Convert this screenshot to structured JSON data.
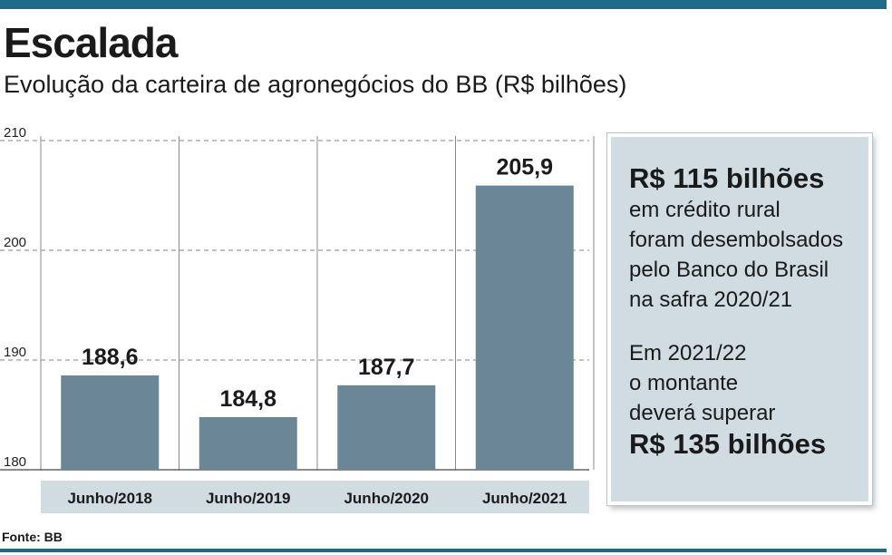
{
  "colors": {
    "accent": "#1e6a88",
    "bar": "#6b8796",
    "label_bg": "#d0dbe2",
    "grid": "#9c9c9c"
  },
  "header": {
    "title": "Escalada",
    "subtitle": "Evolução da carteira de agronegócios do BB (R$ bilhões)"
  },
  "chart_data": {
    "type": "bar",
    "categories": [
      "Junho/2018",
      "Junho/2019",
      "Junho/2020",
      "Junho/2021"
    ],
    "values": [
      188.6,
      184.8,
      187.7,
      205.9
    ],
    "value_labels": [
      "188,6",
      "184,8",
      "187,7",
      "205,9"
    ],
    "yticks": [
      "210",
      "200",
      "190",
      "180"
    ],
    "ylim": [
      180,
      210
    ],
    "grid": true,
    "title": "",
    "xlabel": "",
    "ylabel": ""
  },
  "callout": {
    "line1": "R$ 115 bilhões",
    "line2": "em crédito rural",
    "line3": "foram desembolsados",
    "line4": "pelo Banco do Brasil",
    "line5": "na safra 2020/21",
    "line6": "Em 2021/22",
    "line7": "o montante",
    "line8": "deverá superar",
    "line9": "R$ 135 bilhões"
  },
  "footer": {
    "source": "Fonte: BB"
  }
}
